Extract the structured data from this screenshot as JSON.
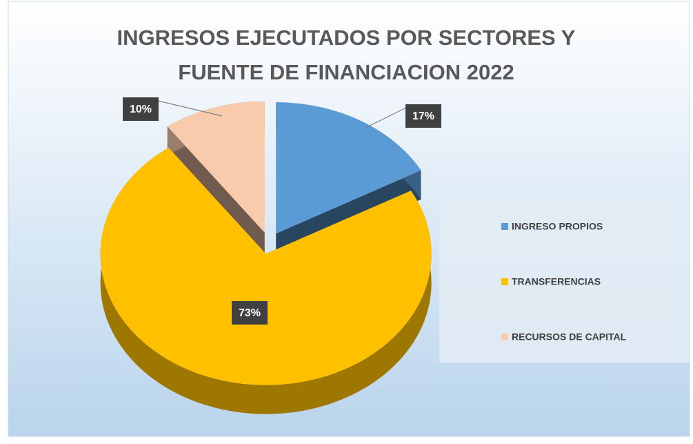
{
  "chart_data": {
    "type": "pie",
    "title": "INGRESOS EJECUTADOS POR SECTORES Y FUENTE DE FINANCIACION 2022",
    "categories": [
      "INGRESO PROPIOS",
      "TRANSFERENCIAS",
      "RECURSOS DE CAPITAL"
    ],
    "values": [
      17,
      73,
      10
    ],
    "value_labels": [
      "17%",
      "73%",
      "10%"
    ],
    "colors": [
      "#5b9bd5",
      "#ffc000",
      "#f8cbad"
    ],
    "legend": "right"
  }
}
